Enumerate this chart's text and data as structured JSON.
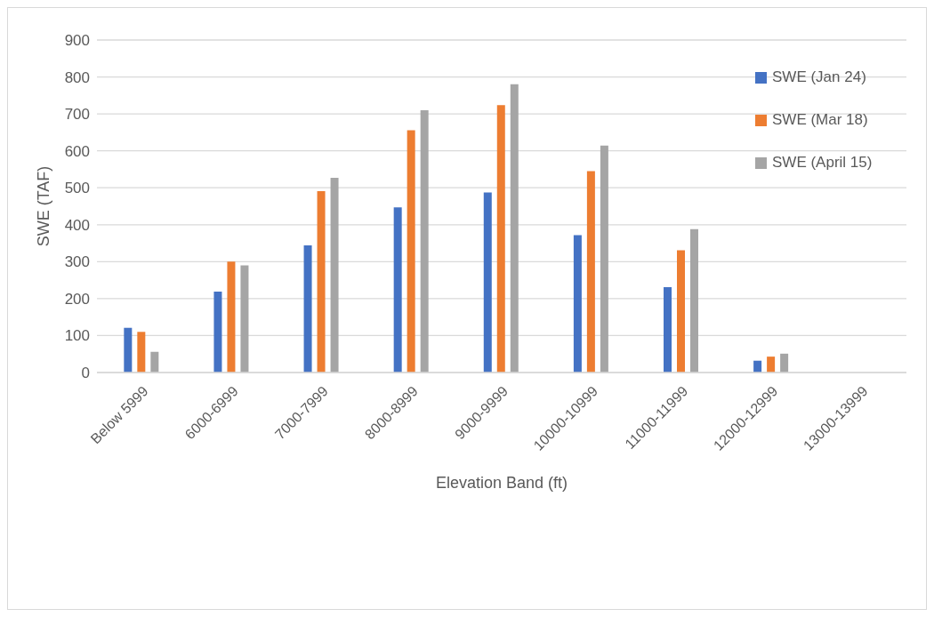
{
  "chart_data": {
    "type": "bar",
    "xlabel": "Elevation Band (ft)",
    "ylabel": "SWE (TAF)",
    "categories": [
      "Below 5999",
      "6000-6999",
      "7000-7999",
      "8000-8999",
      "9000-9999",
      "10000-10999",
      "11000-11999",
      "12000-12999",
      "13000-13999"
    ],
    "series": [
      {
        "name": "SWE (Jan 24)",
        "color": "#4472c4",
        "values": [
          121,
          219,
          344,
          447,
          487,
          372,
          231,
          32,
          0
        ]
      },
      {
        "name": "SWE (Mar 18)",
        "color": "#ed7d31",
        "values": [
          110,
          300,
          491,
          656,
          724,
          545,
          331,
          43,
          0
        ]
      },
      {
        "name": "SWE (April 15)",
        "color": "#a5a5a5",
        "values": [
          56,
          290,
          527,
          710,
          780,
          614,
          388,
          51,
          0
        ]
      }
    ],
    "ylim": [
      0,
      900
    ],
    "yticks": [
      0,
      100,
      200,
      300,
      400,
      500,
      600,
      700,
      800,
      900
    ],
    "grid": "y",
    "legend": "top right"
  }
}
